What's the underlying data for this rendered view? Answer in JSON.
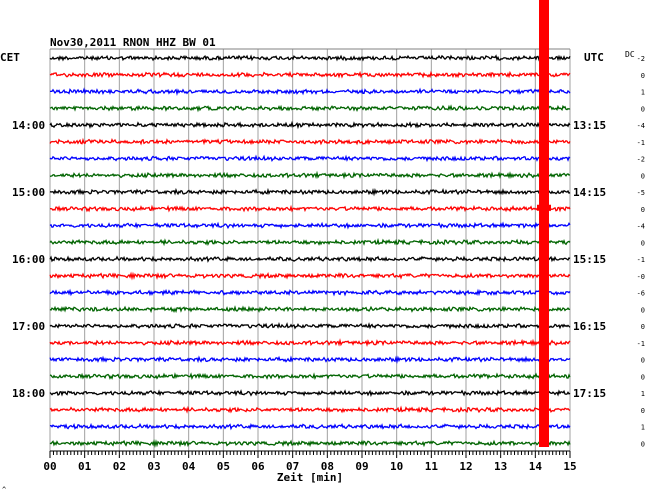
{
  "chart_data": {
    "type": "line",
    "title": "Nov30,2011   RNON HHZ BW 01",
    "xlabel": "Zeit [min]",
    "left_axis_label": "CET",
    "right_axis_label": "UTC",
    "dc_label": "DC",
    "xlim": [
      0,
      15
    ],
    "x_ticks": [
      "00",
      "01",
      "02",
      "03",
      "04",
      "05",
      "06",
      "07",
      "08",
      "09",
      "10",
      "11",
      "12",
      "13",
      "14",
      "15"
    ],
    "rows": 24,
    "trace_colors": [
      "#000000",
      "#ff0000",
      "#0000ff",
      "#006400"
    ],
    "left_hour_labels": [
      {
        "row": 4,
        "label": "14:00"
      },
      {
        "row": 8,
        "label": "15:00"
      },
      {
        "row": 12,
        "label": "16:00"
      },
      {
        "row": 16,
        "label": "17:00"
      },
      {
        "row": 20,
        "label": "18:00"
      }
    ],
    "right_hour_labels": [
      {
        "row": 4,
        "label": "13:15"
      },
      {
        "row": 8,
        "label": "14:15"
      },
      {
        "row": 12,
        "label": "15:15"
      },
      {
        "row": 16,
        "label": "16:15"
      },
      {
        "row": 20,
        "label": "17:15"
      }
    ],
    "dc_offsets": [
      "-2",
      "0",
      "1",
      "0",
      "-4",
      "-1",
      "-2",
      "0",
      "-5",
      "0",
      "-4",
      "0",
      "-1",
      "-0",
      "-6",
      "0",
      "0",
      "-1",
      "0",
      "0",
      "1",
      "0",
      "1",
      "0"
    ],
    "event": {
      "minute": 14.25,
      "color": "#ff0000",
      "label": ""
    },
    "footer_mark": "^"
  }
}
